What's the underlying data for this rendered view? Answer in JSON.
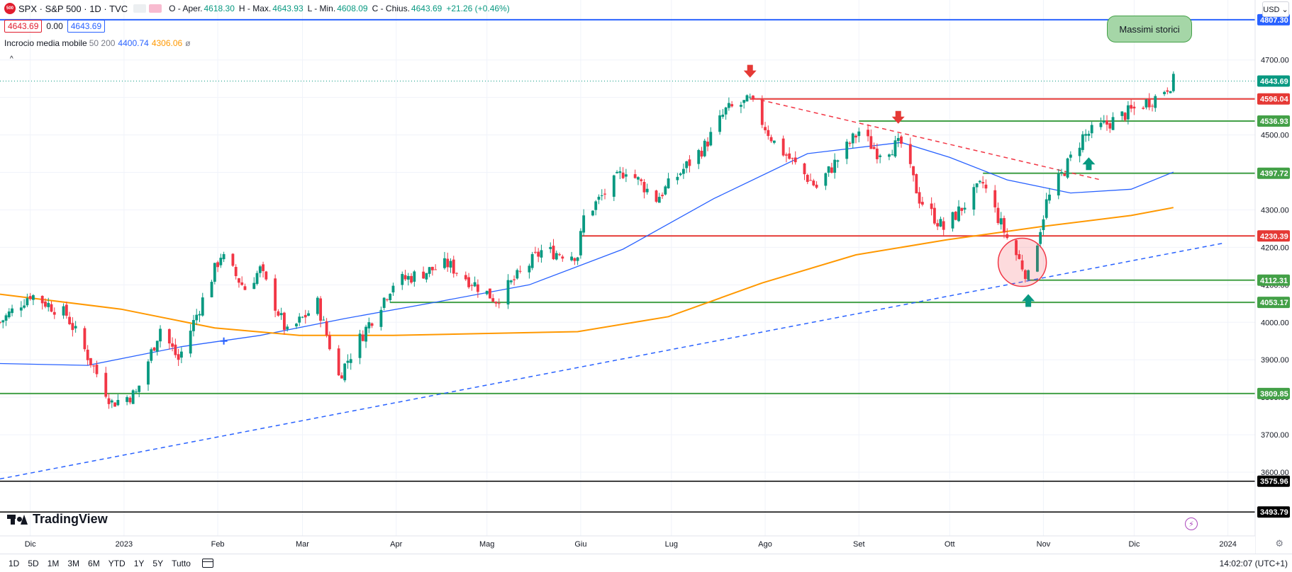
{
  "header": {
    "symbol_badge": "500",
    "title": "SPX · S&P 500 · 1D · TVC",
    "ohlc": [
      {
        "label": "O - Aper.",
        "value": "4618.30"
      },
      {
        "label": "H - Max.",
        "value": "4643.93"
      },
      {
        "label": "L - Min.",
        "value": "4608.09"
      },
      {
        "label": "C - Chius.",
        "value": "4643.69"
      }
    ],
    "change": "+21.26 (+0.46%)",
    "sell_price": "4643.69",
    "spread": "0.00",
    "buy_price": "4643.69"
  },
  "indicator": {
    "name": "Incrocio media mobile",
    "params": "50 200",
    "ma50": "4400.74",
    "ma200": "4306.06",
    "eye": "ø",
    "collapse": "^"
  },
  "currency": "USD ⌄",
  "annotation": "Massimi storici",
  "logo_text": "TradingView",
  "timeframes": [
    "1D",
    "5D",
    "1M",
    "3M",
    "6M",
    "YTD",
    "1Y",
    "5Y",
    "Tutto"
  ],
  "clock": "14:02:07 (UTC+1)",
  "colors": {
    "up": "#089981",
    "down": "#f23645",
    "ma50": "#2962ff",
    "ma200": "#ff9800",
    "support": "#43a047",
    "resistance": "#e53935"
  },
  "chart_data": {
    "type": "candlestick",
    "title": "SPX · S&P 500 · 1D · TVC",
    "y_axis": {
      "range": [
        3430,
        4860
      ],
      "ticks": [
        3600,
        3700,
        3800,
        3900,
        4000,
        4100,
        4200,
        4300,
        4400,
        4500,
        4600,
        4700
      ],
      "position": "right"
    },
    "x_axis": {
      "labels": [
        {
          "date": "2022-12-01",
          "label": "Dic"
        },
        {
          "date": "2023-01-01",
          "label": "2023"
        },
        {
          "date": "2023-02-01",
          "label": "Feb"
        },
        {
          "date": "2023-03-01",
          "label": "Mar"
        },
        {
          "date": "2023-04-01",
          "label": "Apr"
        },
        {
          "date": "2023-05-01",
          "label": "Mag"
        },
        {
          "date": "2023-06-01",
          "label": "Giu"
        },
        {
          "date": "2023-07-01",
          "label": "Lug"
        },
        {
          "date": "2023-08-01",
          "label": "Ago"
        },
        {
          "date": "2023-09-01",
          "label": "Set"
        },
        {
          "date": "2023-10-01",
          "label": "Ott"
        },
        {
          "date": "2023-11-01",
          "label": "Nov"
        },
        {
          "date": "2023-12-01",
          "label": "Dic"
        },
        {
          "date": "2024-01-01",
          "label": "2024"
        }
      ]
    },
    "price_path": [
      [
        "2022-11-21",
        4000
      ],
      [
        "2022-12-01",
        4075
      ],
      [
        "2022-12-13",
        4020
      ],
      [
        "2022-12-28",
        3785
      ],
      [
        "2023-01-05",
        3810
      ],
      [
        "2023-01-13",
        3985
      ],
      [
        "2023-01-19",
        3900
      ],
      [
        "2023-02-02",
        4180
      ],
      [
        "2023-02-10",
        4090
      ],
      [
        "2023-02-15",
        4140
      ],
      [
        "2023-02-24",
        3970
      ],
      [
        "2023-03-06",
        4050
      ],
      [
        "2023-03-13",
        3855
      ],
      [
        "2023-03-17",
        3915
      ],
      [
        "2023-03-31",
        4105
      ],
      [
        "2023-04-18",
        4155
      ],
      [
        "2023-05-04",
        4060
      ],
      [
        "2023-05-19",
        4190
      ],
      [
        "2023-05-31",
        4180
      ],
      [
        "2023-06-02",
        4280
      ],
      [
        "2023-06-16",
        4410
      ],
      [
        "2023-06-26",
        4330
      ],
      [
        "2023-07-12",
        4470
      ],
      [
        "2023-07-19",
        4565
      ],
      [
        "2023-07-27",
        4590
      ],
      [
        "2023-08-04",
        4480
      ],
      [
        "2023-08-18",
        4360
      ],
      [
        "2023-09-01",
        4510
      ],
      [
        "2023-09-07",
        4455
      ],
      [
        "2023-09-15",
        4475
      ],
      [
        "2023-09-21",
        4330
      ],
      [
        "2023-09-29",
        4250
      ],
      [
        "2023-10-12",
        4370
      ],
      [
        "2023-10-20",
        4225
      ],
      [
        "2023-10-27",
        4120
      ],
      [
        "2023-11-02",
        4320
      ],
      [
        "2023-11-14",
        4495
      ],
      [
        "2023-11-28",
        4555
      ],
      [
        "2023-12-08",
        4600
      ],
      [
        "2023-12-14",
        4643.69
      ]
    ],
    "series": [
      {
        "name": "50",
        "color": "#2962ff",
        "points": [
          [
            "2022-11-21",
            3890
          ],
          [
            "2022-12-20",
            3885
          ],
          [
            "2023-01-20",
            3935
          ],
          [
            "2023-02-15",
            3965
          ],
          [
            "2023-03-15",
            4010
          ],
          [
            "2023-04-15",
            4055
          ],
          [
            "2023-05-15",
            4100
          ],
          [
            "2023-06-15",
            4195
          ],
          [
            "2023-07-15",
            4330
          ],
          [
            "2023-08-15",
            4450
          ],
          [
            "2023-09-15",
            4480
          ],
          [
            "2023-10-01",
            4440
          ],
          [
            "2023-10-20",
            4380
          ],
          [
            "2023-11-10",
            4345
          ],
          [
            "2023-11-30",
            4355
          ],
          [
            "2023-12-14",
            4400.74
          ]
        ]
      },
      {
        "name": "200",
        "color": "#ff9800",
        "points": [
          [
            "2022-11-21",
            4075
          ],
          [
            "2022-12-31",
            4035
          ],
          [
            "2023-01-31",
            3985
          ],
          [
            "2023-02-28",
            3965
          ],
          [
            "2023-03-31",
            3965
          ],
          [
            "2023-04-30",
            3970
          ],
          [
            "2023-05-31",
            3975
          ],
          [
            "2023-06-30",
            4015
          ],
          [
            "2023-07-31",
            4105
          ],
          [
            "2023-08-31",
            4180
          ],
          [
            "2023-09-30",
            4220
          ],
          [
            "2023-10-31",
            4255
          ],
          [
            "2023-11-30",
            4285
          ],
          [
            "2023-12-14",
            4306.06
          ]
        ]
      }
    ],
    "horizontal_levels": [
      {
        "price": 4807.3,
        "label": "4807.30",
        "color": "#2962ff",
        "from": "2022-11-21"
      },
      {
        "price": 4596.04,
        "label": "4596.04",
        "color": "#e53935",
        "from": "2023-07-27"
      },
      {
        "price": 4536.93,
        "label": "4536.93",
        "color": "#43a047",
        "from": "2023-09-01"
      },
      {
        "price": 4397.72,
        "label": "4397.72",
        "color": "#43a047",
        "from": "2023-10-12"
      },
      {
        "price": 4230.39,
        "label": "4230.39",
        "color": "#e53935",
        "from": "2023-06-01"
      },
      {
        "price": 4112.31,
        "label": "4112.31",
        "color": "#43a047",
        "from": "2023-10-27"
      },
      {
        "price": 4053.17,
        "label": "4053.17",
        "color": "#43a047",
        "from": "2023-03-30"
      },
      {
        "price": 3809.85,
        "label": "3809.85",
        "color": "#43a047",
        "from": "2022-11-21"
      },
      {
        "price": 3575.96,
        "label": "3575.96",
        "color": "#000000",
        "from": "2022-11-21"
      },
      {
        "price": 3493.79,
        "label": "3493.79",
        "color": "#000000",
        "from": "2022-11-21"
      }
    ],
    "current_price": {
      "price": 4643.69,
      "label": "4643.69"
    },
    "trendlines": [
      {
        "style": "dashed",
        "color": "#2962ff",
        "from": [
          "2022-11-21",
          3582
        ],
        "to": [
          "2023-12-31",
          4212
        ]
      },
      {
        "style": "dashed",
        "color": "#f23645",
        "from": [
          "2023-07-28",
          4598
        ],
        "to": [
          "2023-11-20",
          4380
        ]
      }
    ],
    "markers": [
      {
        "type": "arrow-down",
        "color": "#e53935",
        "date": "2023-07-27",
        "price": 4668
      },
      {
        "type": "arrow-down",
        "color": "#e53935",
        "date": "2023-09-14",
        "price": 4545
      },
      {
        "type": "arrow-up",
        "color": "#089981",
        "date": "2023-10-27",
        "price": 4060
      },
      {
        "type": "arrow-up",
        "color": "#089981",
        "date": "2023-11-16",
        "price": 4425
      },
      {
        "type": "cross",
        "color": "#2962ff",
        "date": "2023-02-03",
        "price": 3950
      }
    ],
    "circle_highlight": {
      "date": "2023-10-25",
      "price": 4160
    },
    "legend": "top-left",
    "grid": true
  }
}
